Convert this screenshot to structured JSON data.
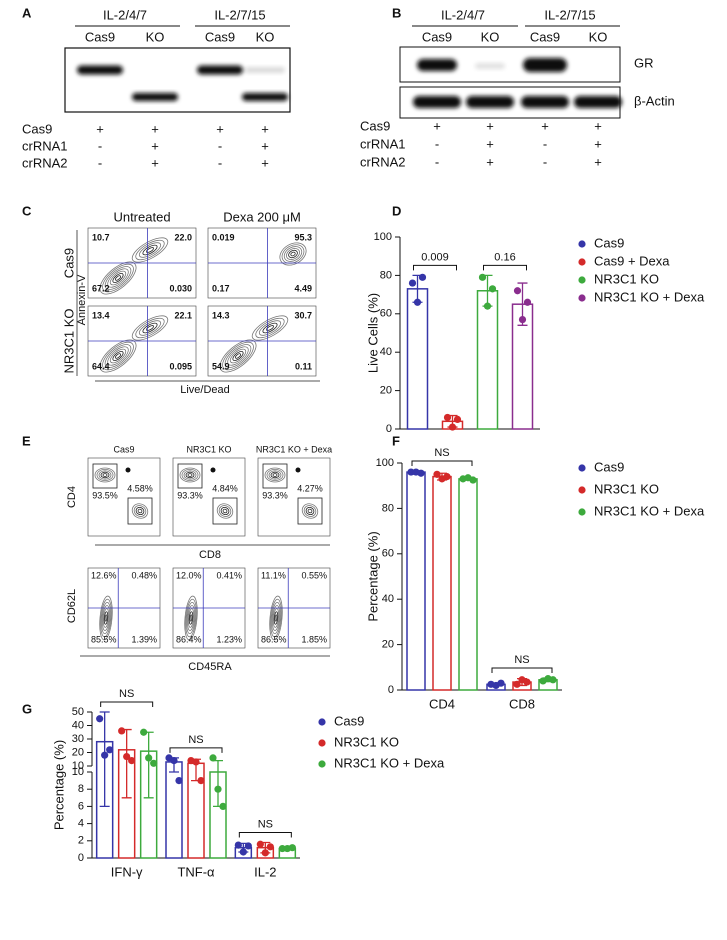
{
  "panel_a": {
    "label": "A",
    "groups": [
      "IL-2/4/7",
      "IL-2/7/15"
    ],
    "lanes": [
      "Cas9",
      "KO",
      "Cas9",
      "KO"
    ],
    "rows": [
      {
        "name": "Cas9",
        "marks": [
          "+",
          "+",
          "+",
          "+"
        ]
      },
      {
        "name": "crRNA1",
        "marks": [
          "-",
          "+",
          "-",
          "+"
        ]
      },
      {
        "name": "crRNA2",
        "marks": [
          "-",
          "+",
          "-",
          "+"
        ]
      }
    ]
  },
  "panel_b": {
    "label": "B",
    "groups": [
      "IL-2/4/7",
      "IL-2/7/15"
    ],
    "lanes": [
      "Cas9",
      "KO",
      "Cas9",
      "KO"
    ],
    "blots": [
      "GR",
      "β-Actin"
    ],
    "rows": [
      {
        "name": "Cas9",
        "marks": [
          "+",
          "+",
          "+",
          "+"
        ]
      },
      {
        "name": "crRNA1",
        "marks": [
          "-",
          "+",
          "-",
          "+"
        ]
      },
      {
        "name": "crRNA2",
        "marks": [
          "-",
          "+",
          "-",
          "+"
        ]
      }
    ]
  },
  "panel_c": {
    "label": "C",
    "columns": [
      "Untreated",
      "Dexa 200 μM"
    ],
    "rows": [
      "Cas9",
      "NR3C1 KO"
    ],
    "y_label": "Annexin-V",
    "x_label": "Live/Dead",
    "plots": [
      [
        [
          "10.7",
          "22.0",
          "67.2",
          "0.030"
        ],
        [
          "0.019",
          "95.3",
          "0.17",
          "4.49"
        ]
      ],
      [
        [
          "13.4",
          "22.1",
          "64.4",
          "0.095"
        ],
        [
          "14.3",
          "30.7",
          "54.9",
          "0.11"
        ]
      ]
    ]
  },
  "panel_e": {
    "label": "E",
    "titles": [
      "Cas9",
      "NR3C1 KO",
      "NR3C1 KO + Dexa"
    ],
    "top": {
      "y_label": "CD4",
      "x_label": "CD8",
      "gates": [
        [
          "93.5%",
          "4.58%"
        ],
        [
          "93.3%",
          "4.84%"
        ],
        [
          "93.3%",
          "4.27%"
        ]
      ]
    },
    "bottom": {
      "y_label": "CD62L",
      "x_label": "CD45RA",
      "quadrants": [
        [
          "12.6%",
          "0.48%",
          "85.5%",
          "1.39%"
        ],
        [
          "12.0%",
          "0.41%",
          "86.4%",
          "1.23%"
        ],
        [
          "11.1%",
          "0.55%",
          "86.5%",
          "1.85%"
        ]
      ]
    }
  },
  "chart_data": [
    {
      "type": "bar",
      "label": "D",
      "ylabel": "Live Cells (%)",
      "ylim": [
        0,
        100
      ],
      "yticks": [
        0,
        20,
        40,
        60,
        80,
        100
      ],
      "series": [
        {
          "name": "Cas9",
          "color": "#3535a8",
          "values": [
            73
          ],
          "errors": [
            7
          ],
          "points": [
            [
              76,
              66,
              79
            ]
          ]
        },
        {
          "name": "Cas9 + Dexa",
          "color": "#d42a2a",
          "values": [
            4
          ],
          "errors": [
            3
          ],
          "points": [
            [
              6,
              1,
              5
            ]
          ]
        },
        {
          "name": "NR3C1 KO",
          "color": "#3daa3d",
          "values": [
            72
          ],
          "errors": [
            8
          ],
          "points": [
            [
              79,
              64,
              73
            ]
          ]
        },
        {
          "name": "NR3C1 KO + Dexa",
          "color": "#8a2d8e",
          "values": [
            65
          ],
          "errors": [
            11
          ],
          "points": [
            [
              72,
              57,
              66
            ]
          ]
        }
      ],
      "annotations": [
        "0.009",
        "0.16"
      ]
    },
    {
      "type": "bar",
      "label": "F",
      "ylabel": "Percentage (%)",
      "categories": [
        "CD4",
        "CD8"
      ],
      "ylim": [
        0,
        100
      ],
      "yticks": [
        0,
        20,
        40,
        60,
        80,
        100
      ],
      "series": [
        {
          "name": "Cas9",
          "color": "#3535a8",
          "values": [
            96,
            2.5
          ],
          "errors": [
            0.5,
            0.5
          ],
          "points": [
            [
              96,
              96,
              95.5
            ],
            [
              2.5,
              2,
              3
            ]
          ]
        },
        {
          "name": "NR3C1 KO",
          "color": "#d42a2a",
          "values": [
            94,
            3.5
          ],
          "errors": [
            1.5,
            1.5
          ],
          "points": [
            [
              95,
              93,
              94
            ],
            [
              2.5,
              4.5,
              3.5
            ]
          ]
        },
        {
          "name": "NR3C1 KO + Dexa",
          "color": "#3daa3d",
          "values": [
            93,
            4.5
          ],
          "errors": [
            0.5,
            0.8
          ],
          "points": [
            [
              93,
              93.5,
              92.5
            ],
            [
              4,
              5,
              4.5
            ]
          ]
        }
      ],
      "annotations": [
        "NS",
        "NS"
      ]
    },
    {
      "type": "bar",
      "label": "G",
      "ylabel": "Percentage (%)",
      "categories": [
        "IFN-γ",
        "TNF-α",
        "IL-2"
      ],
      "y_segments": [
        {
          "ylim": [
            0,
            10
          ],
          "yticks": [
            0,
            2,
            4,
            6,
            8,
            10
          ]
        },
        {
          "ylim": [
            10,
            50
          ],
          "yticks": [
            10,
            20,
            30,
            40,
            50
          ]
        }
      ],
      "series": [
        {
          "name": "Cas9",
          "color": "#3535a8",
          "values": [
            28,
            13,
            1.2
          ],
          "errors": [
            22,
            3,
            0.5
          ],
          "points": [
            [
              45,
              18,
              22
            ],
            [
              16,
              14,
              9
            ],
            [
              1.5,
              0.7,
              1.4
            ]
          ]
        },
        {
          "name": "NR3C1 KO",
          "color": "#d42a2a",
          "values": [
            22,
            12,
            1.2
          ],
          "errors": [
            15,
            3,
            0.6
          ],
          "points": [
            [
              36,
              17,
              14
            ],
            [
              14,
              13,
              9
            ],
            [
              1.6,
              0.6,
              1.3
            ]
          ]
        },
        {
          "name": "NR3C1 KO + Dexa",
          "color": "#3daa3d",
          "values": [
            21,
            10,
            1.1
          ],
          "errors": [
            14,
            4,
            0.1
          ],
          "points": [
            [
              35,
              16,
              12
            ],
            [
              16,
              8,
              6
            ],
            [
              1.1,
              1.1,
              1.2
            ]
          ]
        }
      ],
      "annotations": [
        "NS",
        "NS",
        "NS"
      ]
    }
  ]
}
